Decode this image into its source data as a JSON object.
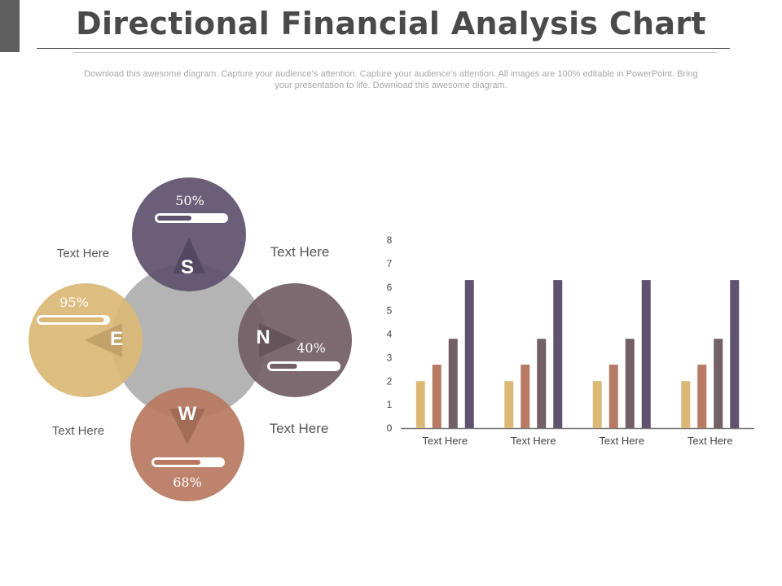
{
  "title": "Directional Financial Analysis Chart",
  "subtitle": "Download this awesome diagram. Capture your audience’s attention. Capture your audience’s attention. All images are 100% editable in PowerPoint. Bring your presentation to life. Download this awesome diagram.",
  "compass": {
    "directions": [
      {
        "letter": "S",
        "percent_label": "50%",
        "progress": 0.5,
        "color": "#5f526f"
      },
      {
        "letter": "N",
        "percent_label": "40%",
        "progress": 0.4,
        "color": "#735f66"
      },
      {
        "letter": "W",
        "percent_label": "68%",
        "progress": 0.68,
        "color": "#b87a62"
      },
      {
        "letter": "E",
        "percent_label": "95%",
        "progress": 0.95,
        "color": "#dcb877"
      }
    ],
    "center_color": "#b4b4b4",
    "corner_labels": {
      "top_left": "Text Here",
      "top_right": "Text Here",
      "bottom_left": "Text Here",
      "bottom_right": "Text Here"
    }
  },
  "chart_data": {
    "type": "bar",
    "categories": [
      "Text Here",
      "Text Here",
      "Text Here",
      "Text Here"
    ],
    "series": [
      {
        "values": [
          2,
          2,
          2,
          2
        ],
        "color": "#dcb877"
      },
      {
        "values": [
          2.7,
          2.7,
          2.7,
          2.7
        ],
        "color": "#b87a62"
      },
      {
        "values": [
          3.8,
          3.8,
          3.8,
          3.8
        ],
        "color": "#735f66"
      },
      {
        "values": [
          6.3,
          6.3,
          6.3,
          6.3
        ],
        "color": "#5f526f"
      }
    ],
    "yticks": [
      "0",
      "1",
      "2",
      "3",
      "4",
      "5",
      "6",
      "7",
      "8"
    ],
    "ylim": [
      0,
      8
    ],
    "grid": false,
    "legend": "none"
  }
}
